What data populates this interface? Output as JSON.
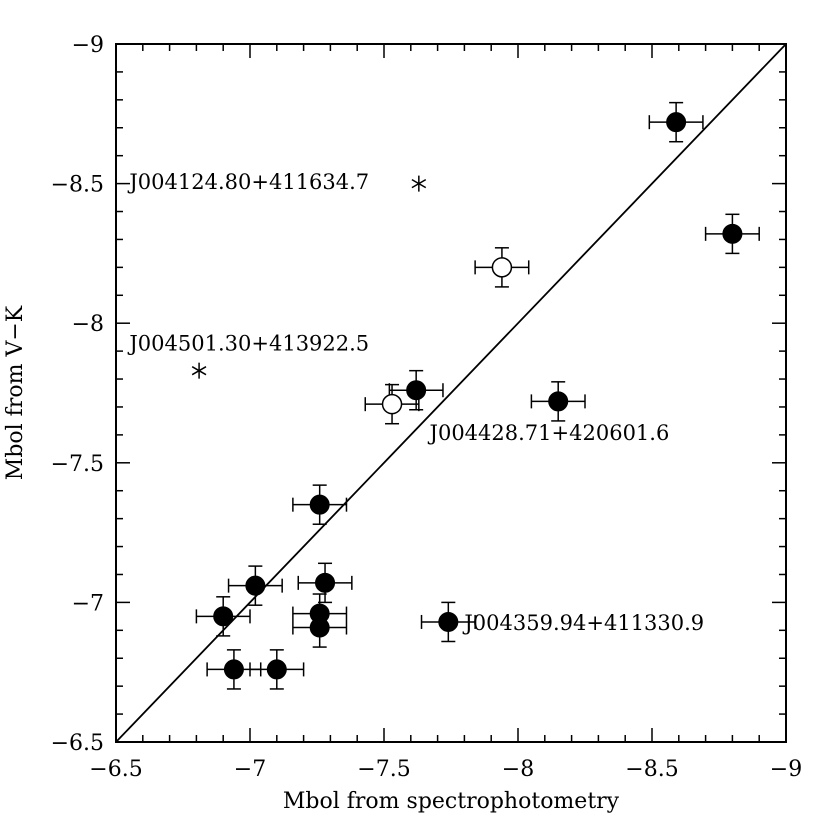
{
  "chart_data": {
    "type": "scatter",
    "xlabel": "Mbol from spectrophotometry",
    "ylabel": "Mbol from V−K",
    "xlim": [
      -6.5,
      -9
    ],
    "ylim": [
      -6.5,
      -9
    ],
    "x_ticks": [
      -6.5,
      -7,
      -7.5,
      -8,
      -8.5,
      -9
    ],
    "x_tick_labels": [
      "−6.5",
      "−7",
      "−7.5",
      "−8",
      "−8.5",
      "−9"
    ],
    "y_ticks": [
      -6.5,
      -7,
      -7.5,
      -8,
      -8.5,
      -9
    ],
    "y_tick_labels": [
      "−6.5",
      "−7",
      "−7.5",
      "−8",
      "−8.5",
      "−9"
    ],
    "grid": false,
    "one_to_one_line": true,
    "series": [
      {
        "marker": "filled-circle",
        "points": [
          {
            "x": -8.59,
            "y": -8.72,
            "xerr": 0.1,
            "yerr": 0.07
          },
          {
            "x": -8.8,
            "y": -8.32,
            "xerr": 0.1,
            "yerr": 0.07
          },
          {
            "x": -7.62,
            "y": -7.76,
            "xerr": 0.1,
            "yerr": 0.07
          },
          {
            "x": -8.15,
            "y": -7.72,
            "xerr": 0.1,
            "yerr": 0.07
          },
          {
            "x": -7.26,
            "y": -7.35,
            "xerr": 0.1,
            "yerr": 0.07
          },
          {
            "x": -7.02,
            "y": -7.06,
            "xerr": 0.1,
            "yerr": 0.07
          },
          {
            "x": -7.28,
            "y": -7.07,
            "xerr": 0.1,
            "yerr": 0.07
          },
          {
            "x": -6.9,
            "y": -6.95,
            "xerr": 0.1,
            "yerr": 0.07
          },
          {
            "x": -7.26,
            "y": -6.96,
            "xerr": 0.1,
            "yerr": 0.07
          },
          {
            "x": -7.26,
            "y": -6.91,
            "xerr": 0.1,
            "yerr": 0.07
          },
          {
            "x": -7.74,
            "y": -6.93,
            "xerr": 0.1,
            "yerr": 0.07
          },
          {
            "x": -6.94,
            "y": -6.76,
            "xerr": 0.1,
            "yerr": 0.07
          },
          {
            "x": -7.1,
            "y": -6.76,
            "xerr": 0.1,
            "yerr": 0.07
          }
        ]
      },
      {
        "marker": "open-circle",
        "points": [
          {
            "x": -7.94,
            "y": -8.2,
            "xerr": 0.1,
            "yerr": 0.07
          },
          {
            "x": -7.53,
            "y": -7.71,
            "xerr": 0.1,
            "yerr": 0.07
          }
        ]
      },
      {
        "marker": "star",
        "points": [
          {
            "x": -7.63,
            "y": -8.5
          },
          {
            "x": -6.81,
            "y": -7.83
          }
        ]
      }
    ],
    "annotations": [
      {
        "text": "J004124.80+411634.7",
        "x": -6.55,
        "y": -8.51
      },
      {
        "text": "J004501.30+413922.5",
        "x": -6.55,
        "y": -7.93
      },
      {
        "text": "J004428.71+420601.6",
        "x": -7.67,
        "y": -7.61
      },
      {
        "text": "J004359.94+411330.9",
        "x": -7.8,
        "y": -6.93
      }
    ]
  }
}
